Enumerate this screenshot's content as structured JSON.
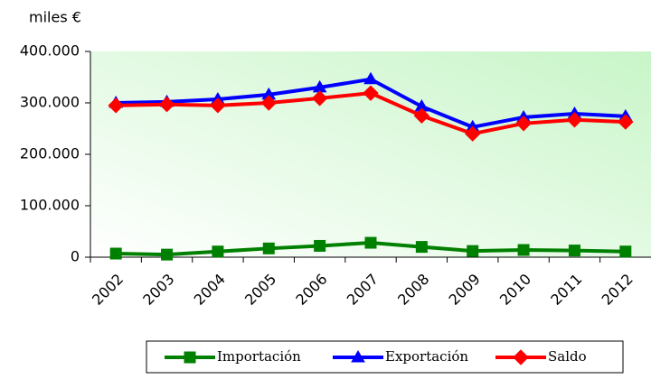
{
  "chart_data": {
    "type": "line",
    "y_label": "miles €",
    "categories": [
      "2002",
      "2003",
      "2004",
      "2005",
      "2006",
      "2007",
      "2008",
      "2009",
      "2010",
      "2011",
      "2012"
    ],
    "series": [
      {
        "name": "Importación",
        "color": "#008000",
        "marker": "square",
        "values": [
          7000,
          5000,
          11000,
          17000,
          22000,
          28000,
          20000,
          12000,
          14000,
          13000,
          11000
        ]
      },
      {
        "name": "Exportación",
        "color": "#0000ff",
        "marker": "triangle",
        "values": [
          300000,
          302000,
          307000,
          316000,
          330000,
          346000,
          293000,
          253000,
          272000,
          279000,
          274000
        ]
      },
      {
        "name": "Saldo",
        "color": "#ff0000",
        "marker": "diamond",
        "values": [
          295000,
          297000,
          295000,
          300000,
          309000,
          319000,
          275000,
          240000,
          260000,
          267000,
          263000
        ]
      }
    ],
    "ylim": [
      0,
      400000
    ],
    "yticks": [
      0,
      {
        "value": 100000,
        "label": "100.000"
      },
      {
        "value": 200000,
        "label": "200.000"
      },
      {
        "value": 300000,
        "label": "300.000"
      },
      {
        "value": 400000,
        "label": "400.000"
      }
    ],
    "legend": "bottom"
  }
}
